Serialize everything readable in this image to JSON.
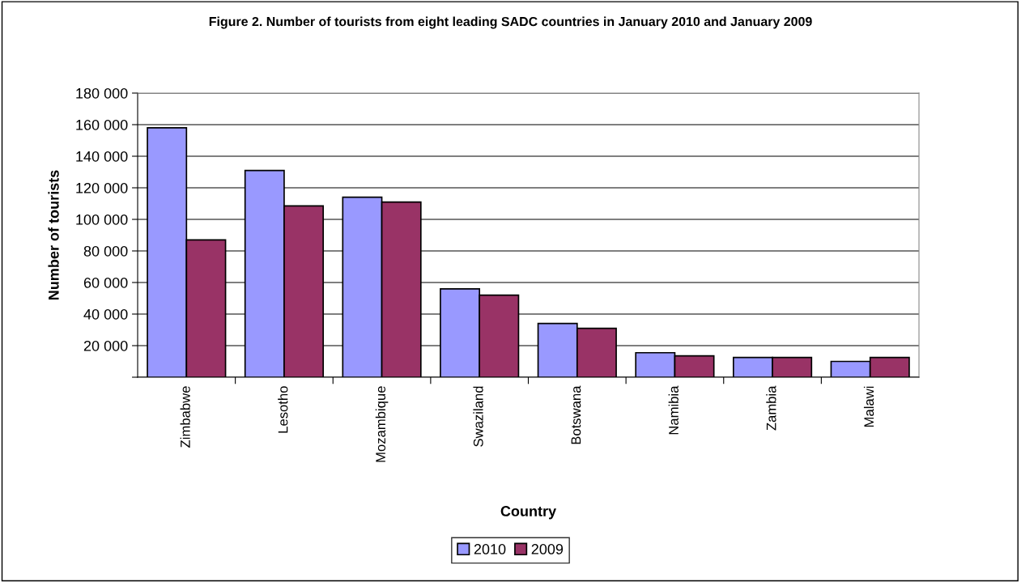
{
  "chart_data": {
    "type": "bar",
    "title": "Figure 2. Number of tourists from eight leading SADC countries in January 2010 and January 2009",
    "xlabel": "Country",
    "ylabel": "Number of tourists",
    "categories": [
      "Zimbabwe",
      "Lesotho",
      "Mozambique",
      "Swaziland",
      "Botswana",
      "Namibia",
      "Zambia",
      "Malawi"
    ],
    "series": [
      {
        "name": "2010",
        "color": "#9999ff",
        "values": [
          158000,
          131000,
          114000,
          56000,
          34000,
          15500,
          12500,
          10000
        ]
      },
      {
        "name": "2009",
        "color": "#993366",
        "values": [
          87000,
          108500,
          111000,
          52000,
          31000,
          13500,
          12500,
          12500
        ]
      }
    ],
    "ylim": [
      0,
      180000
    ],
    "yticks": [
      {
        "value": 0,
        "label": null
      },
      {
        "value": 20000,
        "label": "20 000"
      },
      {
        "value": 40000,
        "label": "40 000"
      },
      {
        "value": 60000,
        "label": "60 000"
      },
      {
        "value": 80000,
        "label": "80 000"
      },
      {
        "value": 100000,
        "label": "100 000"
      },
      {
        "value": 120000,
        "label": "120 000"
      },
      {
        "value": 140000,
        "label": "140 000"
      },
      {
        "value": 160000,
        "label": "160 000"
      },
      {
        "value": 180000,
        "label": "180 000"
      }
    ],
    "grid": "y",
    "legend": "bottom"
  }
}
